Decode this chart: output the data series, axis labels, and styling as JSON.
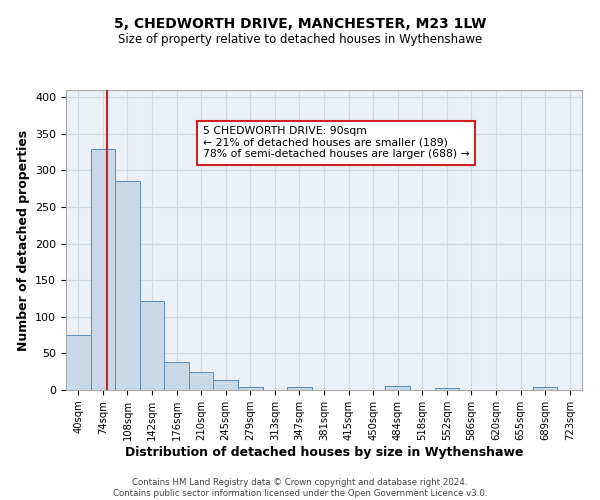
{
  "title1": "5, CHEDWORTH DRIVE, MANCHESTER, M23 1LW",
  "title2": "Size of property relative to detached houses in Wythenshawe",
  "xlabel": "Distribution of detached houses by size in Wythenshawe",
  "ylabel": "Number of detached properties",
  "bins": [
    "40sqm",
    "74sqm",
    "108sqm",
    "142sqm",
    "176sqm",
    "210sqm",
    "245sqm",
    "279sqm",
    "313sqm",
    "347sqm",
    "381sqm",
    "415sqm",
    "450sqm",
    "484sqm",
    "518sqm",
    "552sqm",
    "586sqm",
    "620sqm",
    "655sqm",
    "689sqm",
    "723sqm"
  ],
  "values": [
    75,
    330,
    285,
    121,
    38,
    25,
    13,
    4,
    0,
    4,
    0,
    0,
    0,
    5,
    0,
    3,
    0,
    0,
    0,
    4,
    0
  ],
  "bar_color": "#c9d9e8",
  "bar_edge_color": "#5b8db8",
  "grid_color": "#d0d8e4",
  "bg_color": "#eaf0f6",
  "vline_x_pos": 1.15,
  "vline_color": "#cc2222",
  "annotation_text": "5 CHEDWORTH DRIVE: 90sqm\n← 21% of detached houses are smaller (189)\n78% of semi-detached houses are larger (688) →",
  "annotation_box_color": "#ffffff",
  "annotation_box_edge": "#cc2222",
  "footer": "Contains HM Land Registry data © Crown copyright and database right 2024.\nContains public sector information licensed under the Open Government Licence v3.0.",
  "ylim": [
    0,
    410
  ],
  "yticks": [
    0,
    50,
    100,
    150,
    200,
    250,
    300,
    350,
    400
  ]
}
